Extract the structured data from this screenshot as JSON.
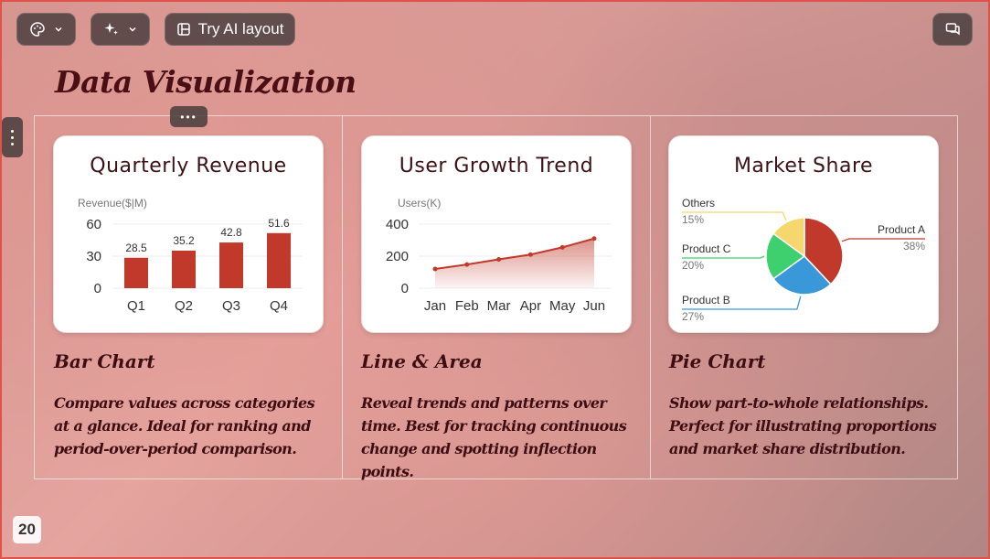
{
  "toolbar": {
    "ai_layout_label": "Try AI layout"
  },
  "slide": {
    "title": "Data Visualization",
    "page_number": "20"
  },
  "columns": [
    {
      "heading": "Bar Chart",
      "description": "Compare values across categories at a glance. Ideal for ranking and period-over-period comparison."
    },
    {
      "heading": "Line & Area",
      "description": "Reveal trends and patterns over time. Best for tracking continuous change and spotting inflection points."
    },
    {
      "heading": "Pie Chart",
      "description": "Show part-to-whole relationships. Perfect for illustrating proportions and market share distribution."
    }
  ],
  "chart_data": [
    {
      "type": "bar",
      "title": "Quarterly Revenue",
      "ylabel": "Revenue($|M)",
      "categories": [
        "Q1",
        "Q2",
        "Q3",
        "Q4"
      ],
      "values": [
        28.5,
        35.2,
        42.8,
        51.6
      ],
      "yticks": [
        "60",
        "30",
        "0"
      ],
      "ylim": [
        0,
        60
      ],
      "color": "#c0392b"
    },
    {
      "type": "area",
      "title": "User Growth Trend",
      "ylabel": "Users(K)",
      "categories": [
        "Jan",
        "Feb",
        "Mar",
        "Apr",
        "May",
        "Jun"
      ],
      "values": [
        120,
        148,
        180,
        210,
        255,
        310
      ],
      "yticks": [
        "400",
        "200",
        "0"
      ],
      "ylim": [
        0,
        400
      ],
      "color": "#c0392b"
    },
    {
      "type": "pie",
      "title": "Market Share",
      "slices": [
        {
          "name": "Product A",
          "value": 38,
          "label": "38%",
          "color": "#c0392b"
        },
        {
          "name": "Product B",
          "value": 27,
          "label": "27%",
          "color": "#3a98d8"
        },
        {
          "name": "Product C",
          "value": 20,
          "label": "20%",
          "color": "#3ecf6e"
        },
        {
          "name": "Others",
          "value": 15,
          "label": "15%",
          "color": "#f5d76e"
        }
      ]
    }
  ]
}
